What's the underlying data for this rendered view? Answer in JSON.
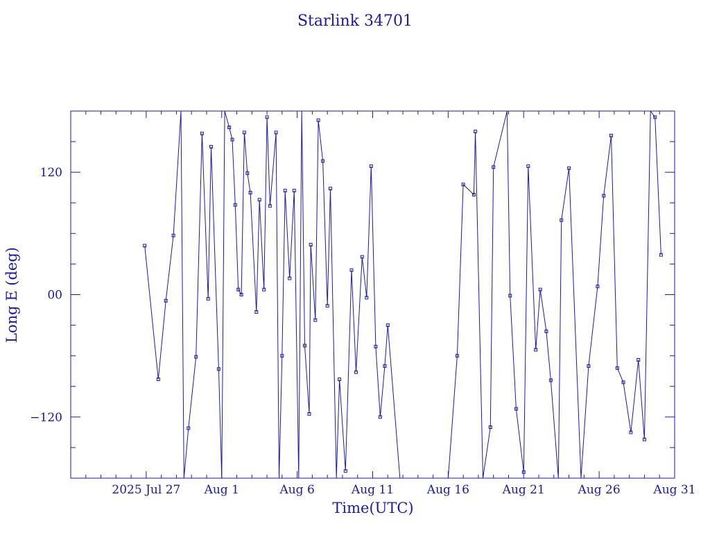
{
  "chart_data": {
    "type": "line",
    "title": "Starlink 34701",
    "xlabel": "Time(UTC)",
    "ylabel": "Long E (deg)",
    "x_start": "2025-07-22",
    "xlim_days": [
      0,
      40
    ],
    "ylim": [
      -180,
      180
    ],
    "x_ticks": [
      {
        "day": 5,
        "label": "2025 Jul 27"
      },
      {
        "day": 10,
        "label": "Aug  1"
      },
      {
        "day": 15,
        "label": "Aug  6"
      },
      {
        "day": 20,
        "label": "Aug 11"
      },
      {
        "day": 25,
        "label": "Aug 16"
      },
      {
        "day": 30,
        "label": "Aug 21"
      },
      {
        "day": 35,
        "label": "Aug 26"
      },
      {
        "day": 40,
        "label": "Aug 31"
      }
    ],
    "y_ticks": [
      {
        "value": 120,
        "label": "120"
      },
      {
        "value": 0,
        "label": "00"
      },
      {
        "value": -120,
        "label": "−120"
      }
    ],
    "grid": false,
    "marker": "open-square",
    "color": "#1a1aa6",
    "series": [
      {
        "name": "Starlink 34701",
        "points": [
          [
            4.9,
            48
          ],
          [
            5.8,
            -83
          ],
          [
            6.3,
            -6
          ],
          [
            6.8,
            58
          ],
          [
            7.3,
            180
          ],
          [
            7.5,
            -180
          ],
          [
            7.8,
            -131
          ],
          [
            8.3,
            -61
          ],
          [
            8.7,
            158
          ],
          [
            9.1,
            -4
          ],
          [
            9.3,
            145
          ],
          [
            9.8,
            -73
          ],
          [
            10.0,
            -180
          ],
          [
            10.2,
            180
          ],
          [
            10.5,
            164
          ],
          [
            10.7,
            152
          ],
          [
            10.9,
            88
          ],
          [
            11.1,
            5
          ],
          [
            11.3,
            0
          ],
          [
            11.5,
            159
          ],
          [
            11.7,
            119
          ],
          [
            11.9,
            100
          ],
          [
            12.3,
            -17
          ],
          [
            12.5,
            93
          ],
          [
            12.8,
            5
          ],
          [
            13.0,
            174
          ],
          [
            13.2,
            87
          ],
          [
            13.6,
            159
          ],
          [
            13.8,
            -180
          ],
          [
            14.0,
            -60
          ],
          [
            14.2,
            102
          ],
          [
            14.5,
            16
          ],
          [
            14.8,
            102
          ],
          [
            15.1,
            -180
          ],
          [
            15.3,
            180
          ],
          [
            15.5,
            -50
          ],
          [
            15.8,
            -117
          ],
          [
            15.9,
            49
          ],
          [
            16.2,
            -25
          ],
          [
            16.4,
            171
          ],
          [
            16.7,
            131
          ],
          [
            17.0,
            -11
          ],
          [
            17.2,
            104
          ],
          [
            17.6,
            -180
          ],
          [
            17.8,
            -83
          ],
          [
            18.2,
            -173
          ],
          [
            18.6,
            24
          ],
          [
            18.9,
            -76
          ],
          [
            19.3,
            37
          ],
          [
            19.6,
            -3
          ],
          [
            19.9,
            126
          ],
          [
            20.2,
            -51
          ],
          [
            20.5,
            -120
          ],
          [
            20.8,
            -70
          ],
          [
            21.0,
            -30
          ],
          [
            22.0,
            -216
          ],
          [
            23.0,
            -257
          ],
          [
            24.0,
            -216
          ],
          [
            25.0,
            -180
          ],
          [
            25.6,
            -60
          ],
          [
            26.0,
            108
          ],
          [
            26.7,
            98
          ],
          [
            26.8,
            160
          ],
          [
            27.3,
            -180
          ],
          [
            27.8,
            -130
          ],
          [
            28.0,
            125
          ],
          [
            28.9,
            180
          ],
          [
            29.1,
            -1
          ],
          [
            29.5,
            -112
          ],
          [
            30.0,
            -174
          ],
          [
            30.3,
            126
          ],
          [
            30.8,
            -54
          ],
          [
            31.1,
            5
          ],
          [
            31.5,
            -36
          ],
          [
            31.8,
            -84
          ],
          [
            32.3,
            -180
          ],
          [
            32.5,
            73
          ],
          [
            33.0,
            124
          ],
          [
            33.8,
            -180
          ],
          [
            34.3,
            -70
          ],
          [
            34.9,
            8
          ],
          [
            35.3,
            97
          ],
          [
            35.8,
            156
          ],
          [
            36.2,
            -72
          ],
          [
            36.6,
            -86
          ],
          [
            37.1,
            -135
          ],
          [
            37.6,
            -64
          ],
          [
            38.0,
            -142
          ],
          [
            38.4,
            180
          ],
          [
            38.7,
            174
          ],
          [
            39.1,
            39
          ]
        ]
      }
    ]
  }
}
